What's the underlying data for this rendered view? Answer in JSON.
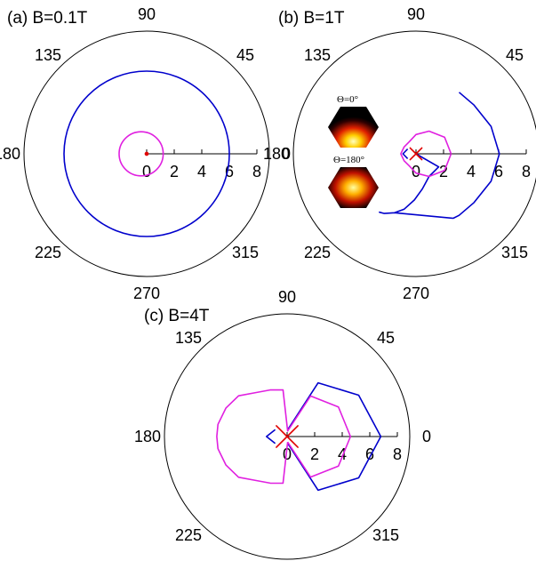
{
  "chart_data": [
    {
      "type": "polar",
      "title": "(a) B=0.1T",
      "angle_ticks": [
        "0",
        "45",
        "90",
        "135",
        "180",
        "225",
        "270",
        "315"
      ],
      "r_ticks": [
        "0",
        "2",
        "4",
        "6",
        "8"
      ],
      "rlim": [
        0,
        8
      ],
      "grid": false,
      "series": [
        {
          "color": "#0000cc",
          "shape": "circle",
          "center": [
            0,
            0
          ],
          "radius": 6.0
        },
        {
          "color": "#e020e0",
          "shape": "circle",
          "center": [
            -0.4,
            0
          ],
          "radius": 1.6
        },
        {
          "color": "#e00000",
          "shape": "circle",
          "center": [
            0,
            0
          ],
          "radius": 0.1
        }
      ]
    },
    {
      "type": "polar",
      "title": "(b) B=1T",
      "angle_ticks": [
        "0",
        "45",
        "90",
        "135",
        "180",
        "225",
        "270",
        "315"
      ],
      "r_ticks": [
        "0",
        "2",
        "4",
        "6",
        "8"
      ],
      "rlim": [
        0,
        8
      ],
      "grid": false,
      "inset": {
        "labels": [
          "Θ=0°",
          "Θ=180°"
        ]
      },
      "series": [
        {
          "color": "#0000cc",
          "points": [
            [
              55,
              5.45
            ],
            [
              40,
              5.5
            ],
            [
              20,
              5.8
            ],
            [
              0,
              6.05
            ],
            [
              -20,
              5.8
            ],
            [
              -40,
              5.5
            ],
            [
              -55,
              5.45
            ],
            [
              -60,
              5.4
            ],
            [
              -110,
              4.55
            ],
            [
              -118,
              4.9
            ],
            [
              -122,
              5.0
            ],
            [
              -118,
              4.9
            ],
            [
              -110,
              4.55
            ],
            [
              -102,
              4.1
            ],
            [
              -92,
              3.35
            ],
            [
              -80,
              2.6
            ],
            [
              -60,
              1.9
            ],
            [
              -30,
              1.9
            ],
            [
              0,
              0.0
            ]
          ]
        },
        {
          "color": "#e020e0",
          "points": [
            [
              0,
              2.55
            ],
            [
              30,
              2.4
            ],
            [
              60,
              1.9
            ],
            [
              90,
              1.4
            ],
            [
              120,
              1.0
            ],
            [
              150,
              1.0
            ],
            [
              180,
              1.1
            ],
            [
              210,
              1.0
            ],
            [
              240,
              1.0
            ],
            [
              270,
              1.4
            ],
            [
              300,
              1.9
            ],
            [
              330,
              2.4
            ],
            [
              360,
              2.55
            ]
          ]
        },
        {
          "color": "#0000cc",
          "points": [
            [
              150,
              0.7
            ],
            [
              180,
              0.95
            ],
            [
              210,
              0.7
            ]
          ]
        },
        {
          "color": "#e00000",
          "points": [
            [
              0,
              0.0
            ],
            [
              45,
              0.6
            ],
            [
              90,
              0.0
            ],
            [
              135,
              0.6
            ],
            [
              180,
              0.0
            ],
            [
              225,
              0.6
            ],
            [
              270,
              0.0
            ],
            [
              315,
              0.6
            ],
            [
              360,
              0.0
            ]
          ]
        }
      ]
    },
    {
      "type": "polar",
      "title": "(c) B=4T",
      "angle_ticks": [
        "0",
        "45",
        "90",
        "135",
        "180",
        "225",
        "270",
        "315"
      ],
      "r_ticks": [
        "0",
        "2",
        "4",
        "6",
        "8"
      ],
      "rlim": [
        0,
        8
      ],
      "grid": false,
      "series": [
        {
          "color": "#0000cc",
          "points": [
            [
              -85,
              0.5
            ],
            [
              -60,
              4.5
            ],
            [
              -30,
              6.0
            ],
            [
              0,
              6.8
            ],
            [
              30,
              6.0
            ],
            [
              60,
              4.5
            ],
            [
              85,
              0.5
            ]
          ]
        },
        {
          "color": "#e020e0",
          "points": [
            [
              -84,
              0.4
            ],
            [
              -60,
              3.4
            ],
            [
              -30,
              4.3
            ],
            [
              0,
              4.6
            ],
            [
              30,
              4.3
            ],
            [
              60,
              3.4
            ],
            [
              84,
              0.4
            ],
            [
              95,
              3.4
            ],
            [
              110,
              3.6
            ],
            [
              125,
              3.9
            ],
            [
              140,
              4.6
            ],
            [
              155,
              4.9
            ],
            [
              170,
              5.1
            ],
            [
              180,
              5.1
            ],
            [
              190,
              5.1
            ],
            [
              205,
              4.9
            ],
            [
              220,
              4.6
            ],
            [
              235,
              3.9
            ],
            [
              250,
              3.6
            ],
            [
              265,
              3.4
            ],
            [
              276,
              0.4
            ]
          ]
        },
        {
          "color": "#0000cc",
          "points": [
            [
              150,
              1.0
            ],
            [
              180,
              1.5
            ],
            [
              210,
              1.0
            ]
          ]
        },
        {
          "color": "#e00000",
          "points": [
            [
              0,
              0.0
            ],
            [
              45,
              1.1
            ],
            [
              90,
              0.0
            ],
            [
              135,
              1.1
            ],
            [
              180,
              0.0
            ],
            [
              225,
              1.1
            ],
            [
              270,
              0.0
            ],
            [
              315,
              1.1
            ],
            [
              360,
              0.0
            ]
          ]
        }
      ]
    }
  ]
}
